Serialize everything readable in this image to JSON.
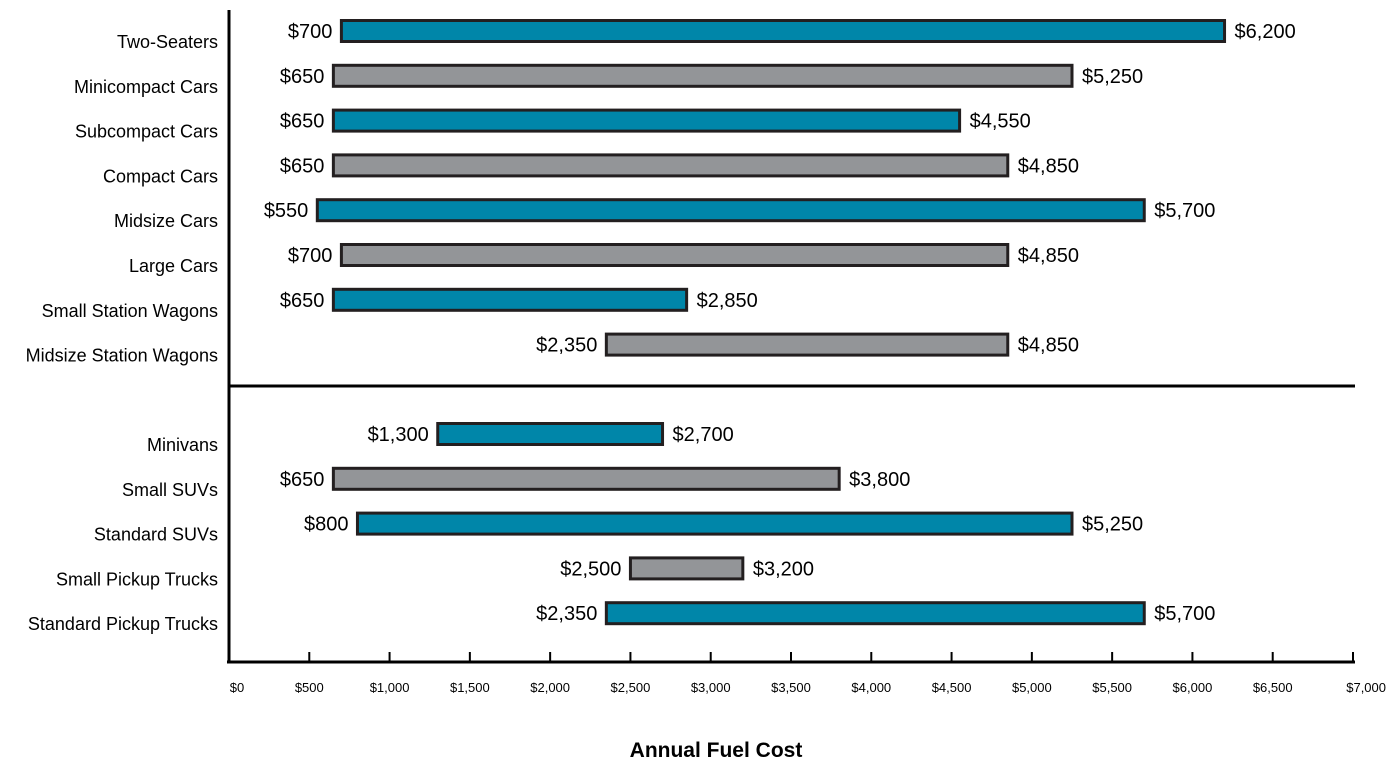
{
  "chart_data": {
    "type": "bar",
    "orientation": "horizontal",
    "style": "range",
    "xlabel": "Annual Fuel Cost",
    "ylabel": "",
    "xlim": [
      0,
      7000
    ],
    "xticks": [
      0,
      500,
      1000,
      1500,
      2000,
      2500,
      3000,
      3500,
      4000,
      4500,
      5000,
      5500,
      6000,
      6500,
      7000
    ],
    "xtick_labels": [
      "$0",
      "$500",
      "$1,000",
      "$1,500",
      "$2,000",
      "$2,500",
      "$3,000",
      "$3,500",
      "$4,000",
      "$4,500",
      "$5,000",
      "$5,500",
      "$6,000",
      "$6,500",
      "$7,000"
    ],
    "grid": false,
    "colors": {
      "teal": "#0086A9",
      "gray": "#939598",
      "outline": "#231f20"
    },
    "groups": [
      {
        "categories": [
          {
            "label": "Two-Seaters",
            "min": 700,
            "max": 6200,
            "min_label": "$700",
            "max_label": "$6,200",
            "color": "teal"
          },
          {
            "label": "Minicompact Cars",
            "min": 650,
            "max": 5250,
            "min_label": "$650",
            "max_label": "$5,250",
            "color": "gray"
          },
          {
            "label": "Subcompact Cars",
            "min": 650,
            "max": 4550,
            "min_label": "$650",
            "max_label": "$4,550",
            "color": "teal"
          },
          {
            "label": "Compact Cars",
            "min": 650,
            "max": 4850,
            "min_label": "$650",
            "max_label": "$4,850",
            "color": "gray"
          },
          {
            "label": "Midsize Cars",
            "min": 550,
            "max": 5700,
            "min_label": "$550",
            "max_label": "$5,700",
            "color": "teal"
          },
          {
            "label": "Large Cars",
            "min": 700,
            "max": 4850,
            "min_label": "$700",
            "max_label": "$4,850",
            "color": "gray"
          },
          {
            "label": "Small Station Wagons",
            "min": 650,
            "max": 2850,
            "min_label": "$650",
            "max_label": "$2,850",
            "color": "teal"
          },
          {
            "label": "Midsize Station Wagons",
            "min": 2350,
            "max": 4850,
            "min_label": "$2,350",
            "max_label": "$4,850",
            "color": "gray"
          }
        ]
      },
      {
        "categories": [
          {
            "label": "Minivans",
            "min": 1300,
            "max": 2700,
            "min_label": "$1,300",
            "max_label": "$2,700",
            "color": "teal"
          },
          {
            "label": "Small SUVs",
            "min": 650,
            "max": 3800,
            "min_label": "$650",
            "max_label": "$3,800",
            "color": "gray"
          },
          {
            "label": "Standard SUVs",
            "min": 800,
            "max": 5250,
            "min_label": "$800",
            "max_label": "$5,250",
            "color": "teal"
          },
          {
            "label": "Small Pickup Trucks",
            "min": 2500,
            "max": 3200,
            "min_label": "$2,500",
            "max_label": "$3,200",
            "color": "gray"
          },
          {
            "label": "Standard Pickup Trucks",
            "min": 2350,
            "max": 5700,
            "min_label": "$2,350",
            "max_label": "$5,700",
            "color": "teal"
          }
        ]
      }
    ]
  }
}
